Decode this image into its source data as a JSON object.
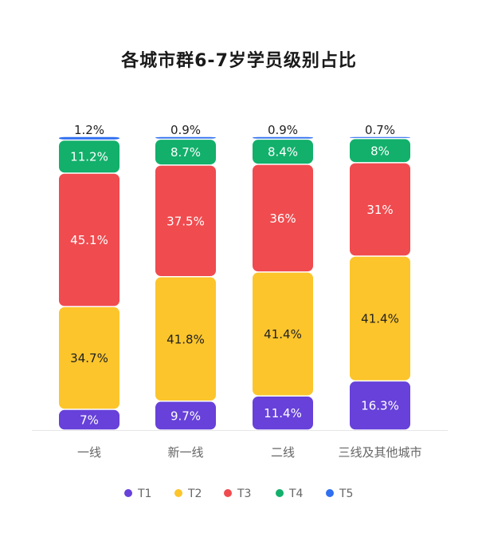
{
  "chart_data": {
    "type": "bar",
    "stacked": true,
    "normalized": true,
    "title": "各城市群6-7岁学员级别占比",
    "categories": [
      "一线",
      "新一线",
      "二线",
      "三线及其他城市"
    ],
    "series": [
      {
        "name": "T1",
        "color": "#6741D9",
        "values": [
          7,
          9.7,
          11.4,
          16.3
        ],
        "labels": [
          "7%",
          "9.7%",
          "11.4%",
          "16.3%"
        ]
      },
      {
        "name": "T2",
        "color": "#FCC52C",
        "values": [
          34.7,
          41.8,
          41.4,
          41.4
        ],
        "labels": [
          "34.7%",
          "41.8%",
          "41.4%",
          "41.4%"
        ]
      },
      {
        "name": "T3",
        "color": "#F04B4F",
        "values": [
          45.1,
          37.5,
          36,
          31
        ],
        "labels": [
          "45.1%",
          "37.5%",
          "36%",
          "31%"
        ]
      },
      {
        "name": "T4",
        "color": "#12B06B",
        "values": [
          11.2,
          8.7,
          8.4,
          8
        ],
        "labels": [
          "11.2%",
          "8.7%",
          "8.4%",
          "8%"
        ]
      },
      {
        "name": "T5",
        "color": "#2F6FF0",
        "values": [
          1.2,
          0.9,
          0.9,
          0.7
        ],
        "labels": [
          "1.2%",
          "0.9%",
          "0.9%",
          "0.7%"
        ]
      }
    ],
    "ylim": [
      0,
      100
    ],
    "grid": false,
    "legend_position": "bottom"
  }
}
